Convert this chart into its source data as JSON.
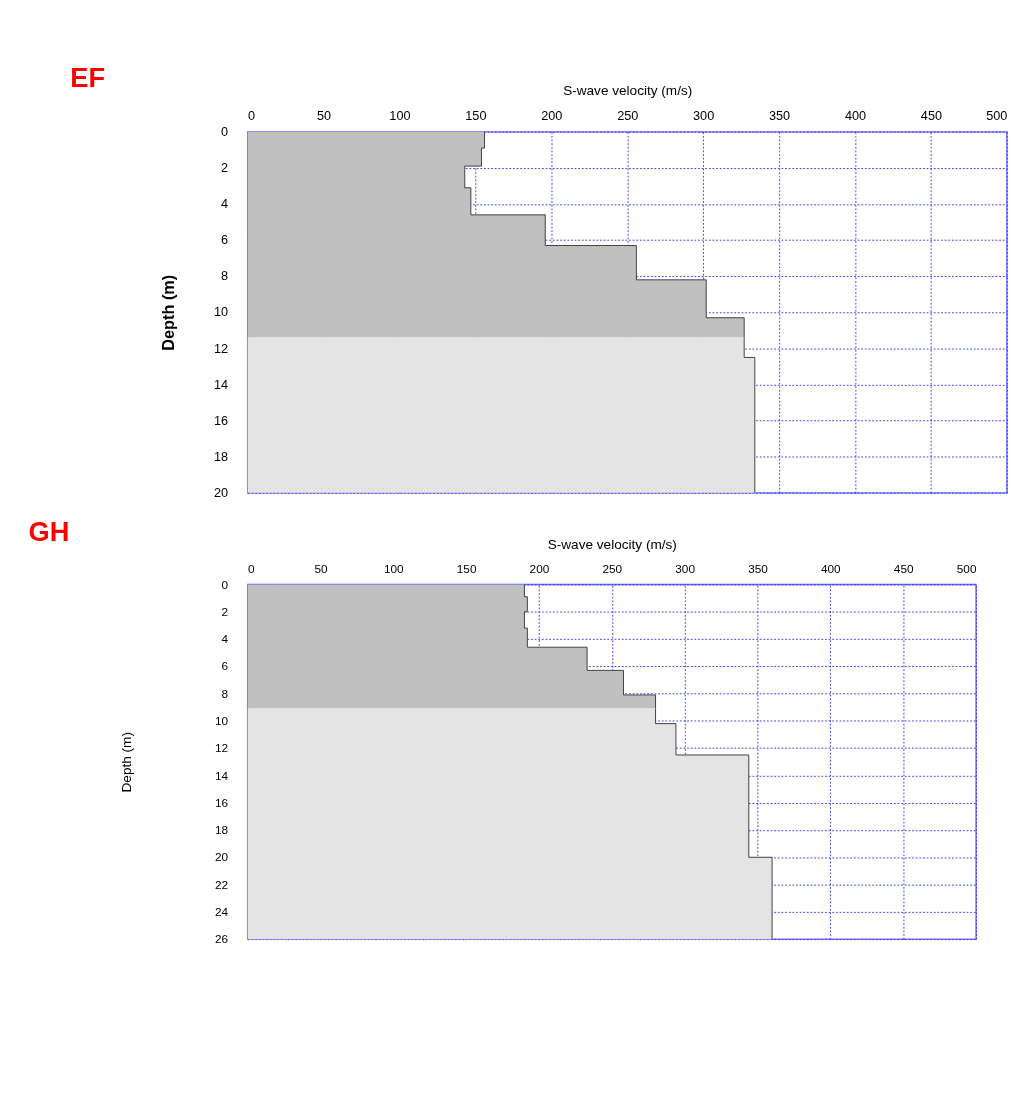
{
  "chart_data": [
    {
      "type": "area",
      "orientation": "horizontal",
      "title": "EF",
      "xlabel": "S-wave velocity (m/s)",
      "ylabel": "Depth (m)",
      "xlim": [
        0,
        500
      ],
      "xticks": [
        0,
        50,
        100,
        150,
        200,
        250,
        300,
        350,
        400,
        450,
        500
      ],
      "ylim": [
        20,
        0
      ],
      "yticks": [
        0,
        2,
        4,
        6,
        8,
        10,
        12,
        14,
        16,
        18,
        20
      ],
      "grid": true,
      "legend": false,
      "series": [
        {
          "color": "#c0c0c0",
          "x": [
            0,
            0.9,
            0.9,
            1.9,
            1.9,
            3.1,
            3.1,
            4.6,
            4.6,
            6.3,
            6.3,
            8.2,
            8.2,
            10.3,
            10.3,
            11.4
          ],
          "values": [
            156,
            156,
            154,
            154,
            143,
            143,
            147,
            147,
            196,
            196,
            256,
            256,
            302,
            302,
            327,
            327
          ]
        },
        {
          "color": "#e4e4e4",
          "x": [
            11.4,
            12.5,
            12.5,
            20
          ],
          "values": [
            327,
            327,
            334,
            334
          ]
        }
      ]
    },
    {
      "type": "area",
      "orientation": "horizontal",
      "title": "GH",
      "xlabel": "S-wave velocity (m/s)",
      "ylabel": "Depth (m)",
      "xlim": [
        0,
        500
      ],
      "xticks": [
        0,
        50,
        100,
        150,
        200,
        250,
        300,
        350,
        400,
        450,
        500
      ],
      "ylim": [
        26,
        0
      ],
      "yticks": [
        0,
        2,
        4,
        6,
        8,
        10,
        12,
        14,
        16,
        18,
        20,
        22,
        24,
        26
      ],
      "grid": true,
      "legend": false,
      "series": [
        {
          "color": "#c0c0c0",
          "x": [
            0,
            0.9,
            0.9,
            2,
            2,
            3.2,
            3.2,
            4.6,
            4.6,
            6.3,
            6.3,
            8.1,
            8.1,
            9.1
          ],
          "values": [
            190,
            190,
            192,
            192,
            190,
            190,
            192,
            192,
            233,
            233,
            258,
            258,
            280,
            280
          ]
        },
        {
          "color": "#e4e4e4",
          "x": [
            9.1,
            10.2,
            10.2,
            12.5,
            12.5,
            20,
            20,
            26
          ],
          "values": [
            280,
            280,
            294,
            294,
            344,
            344,
            360,
            360
          ]
        }
      ]
    }
  ]
}
